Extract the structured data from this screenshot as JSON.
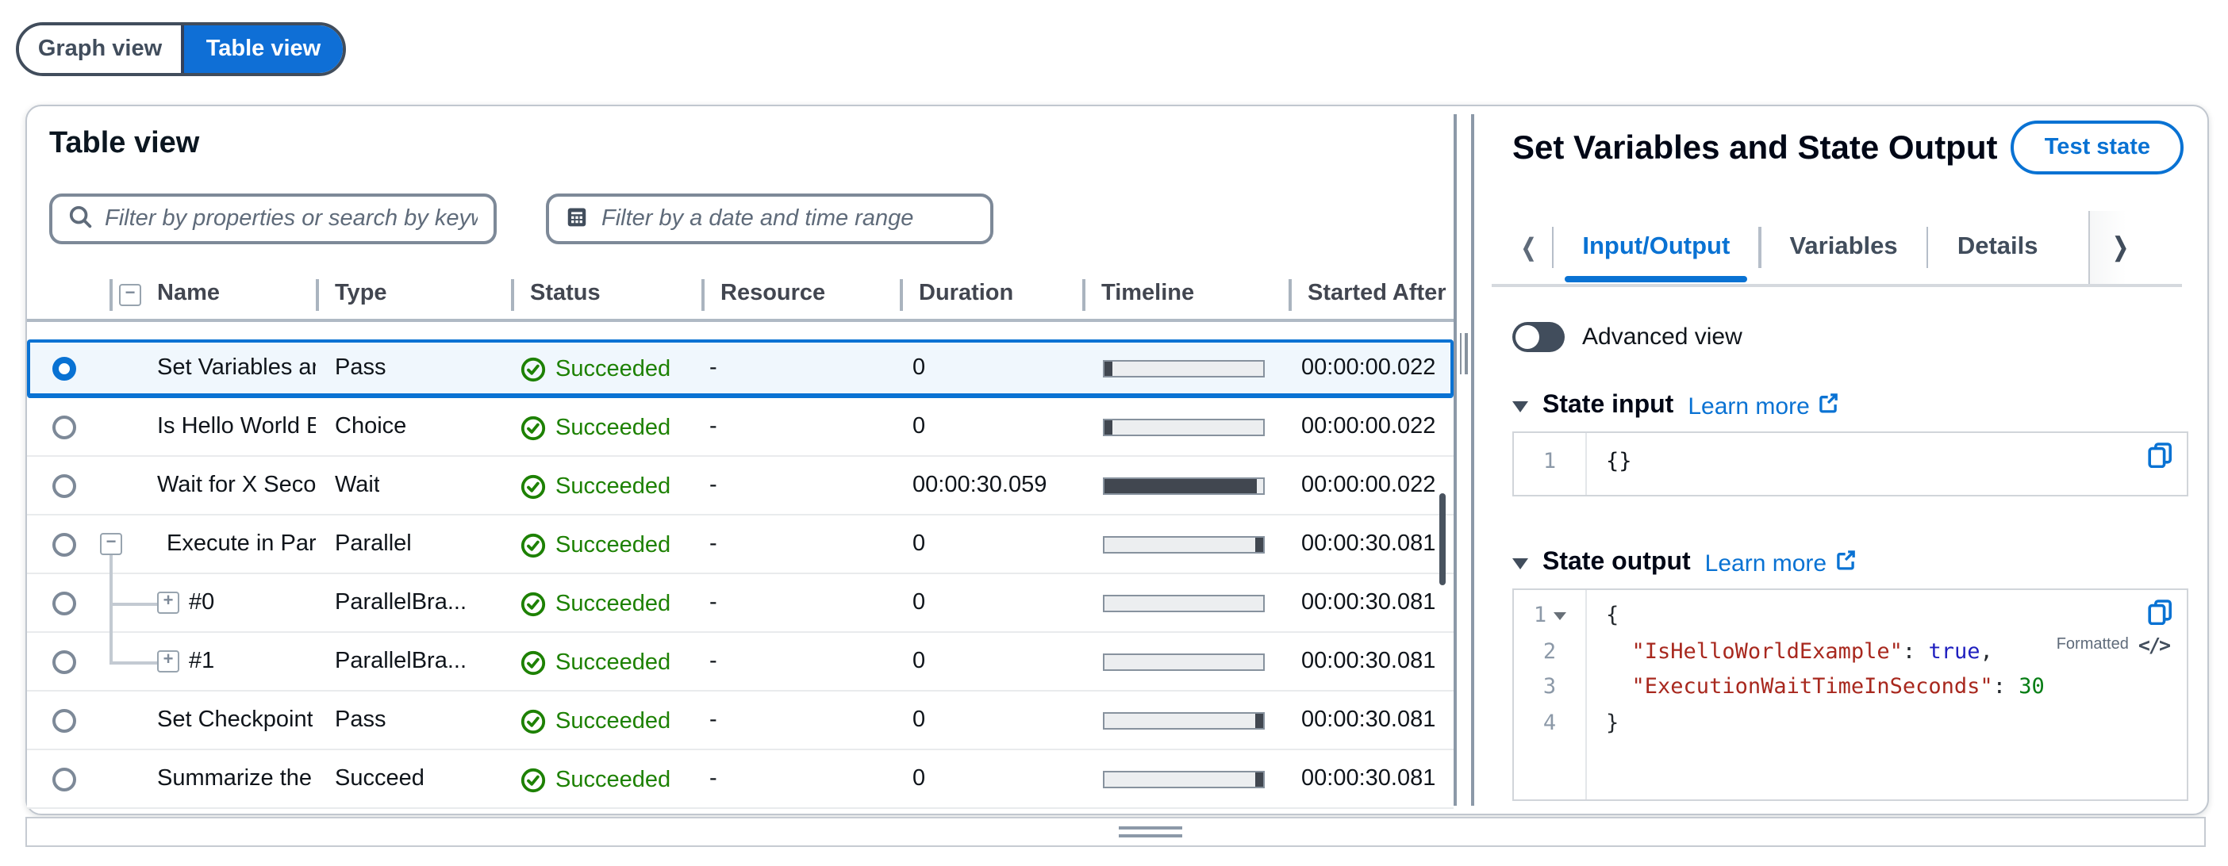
{
  "view_toggle": {
    "graph_label": "Graph view",
    "table_label": "Table view",
    "selected": "Table view"
  },
  "table_panel": {
    "title": "Table view",
    "search_placeholder": "Filter by properties or search by keyword",
    "date_placeholder": "Filter by a date and time range",
    "columns": [
      "Name",
      "Type",
      "Status",
      "Resource",
      "Duration",
      "Timeline",
      "Started After"
    ],
    "rows": [
      {
        "name": "Set Variables ar",
        "type": "Pass",
        "status": "Succeeded",
        "resource": "-",
        "duration": "0",
        "started_after": "00:00:00.022",
        "selected": true,
        "tree": "none",
        "timeline_mark": "start"
      },
      {
        "name": "Is Hello World E",
        "type": "Choice",
        "status": "Succeeded",
        "resource": "-",
        "duration": "0",
        "started_after": "00:00:00.022",
        "selected": false,
        "tree": "none",
        "timeline_mark": "start"
      },
      {
        "name": "Wait for X Secor",
        "type": "Wait",
        "status": "Succeeded",
        "resource": "-",
        "duration": "00:00:30.059",
        "started_after": "00:00:00.022",
        "selected": false,
        "tree": "none",
        "timeline_mark": "full"
      },
      {
        "name": "Execute in Para",
        "type": "Parallel",
        "status": "Succeeded",
        "resource": "-",
        "duration": "0",
        "started_after": "00:00:30.081",
        "selected": false,
        "tree": "collapse",
        "timeline_mark": "end"
      },
      {
        "name": "#0",
        "type": "ParallelBra...",
        "status": "Succeeded",
        "resource": "-",
        "duration": "0",
        "started_after": "00:00:30.081",
        "selected": false,
        "tree": "child",
        "timeline_mark": "none"
      },
      {
        "name": "#1",
        "type": "ParallelBra...",
        "status": "Succeeded",
        "resource": "-",
        "duration": "0",
        "started_after": "00:00:30.081",
        "selected": false,
        "tree": "child-last",
        "timeline_mark": "none"
      },
      {
        "name": "Set Checkpoint",
        "type": "Pass",
        "status": "Succeeded",
        "resource": "-",
        "duration": "0",
        "started_after": "00:00:30.081",
        "selected": false,
        "tree": "none",
        "timeline_mark": "end"
      },
      {
        "name": "Summarize the",
        "type": "Succeed",
        "status": "Succeeded",
        "resource": "-",
        "duration": "0",
        "started_after": "00:00:30.081",
        "selected": false,
        "tree": "none",
        "timeline_mark": "end"
      }
    ]
  },
  "detail_panel": {
    "title": "Set Variables and State Output",
    "test_state_label": "Test state",
    "tabs": [
      {
        "label": "Input/Output",
        "active": true
      },
      {
        "label": "Variables",
        "active": false
      },
      {
        "label": "Details",
        "active": false
      }
    ],
    "advanced_view_label": "Advanced view",
    "advanced_view_on": false,
    "state_input": {
      "heading": "State input",
      "learn_more_label": "Learn more",
      "lines": [
        {
          "num": "1",
          "code": "{}"
        }
      ]
    },
    "state_output": {
      "heading": "State output",
      "learn_more_label": "Learn more",
      "formatted_label": "Formatted",
      "lines": [
        {
          "num": "1",
          "fold": true,
          "tokens": [
            {
              "t": "{",
              "c": "plain"
            }
          ]
        },
        {
          "num": "2",
          "fold": false,
          "tokens": [
            {
              "t": "  ",
              "c": "plain"
            },
            {
              "t": "\"IsHelloWorldExample\"",
              "c": "key"
            },
            {
              "t": ": ",
              "c": "plain"
            },
            {
              "t": "true",
              "c": "bool"
            },
            {
              "t": ",",
              "c": "plain"
            }
          ]
        },
        {
          "num": "3",
          "fold": false,
          "tokens": [
            {
              "t": "  ",
              "c": "plain"
            },
            {
              "t": "\"ExecutionWaitTimeInSeconds\"",
              "c": "key"
            },
            {
              "t": ": ",
              "c": "plain"
            },
            {
              "t": "30",
              "c": "num"
            }
          ]
        },
        {
          "num": "4",
          "fold": false,
          "tokens": [
            {
              "t": "}",
              "c": "plain"
            }
          ]
        }
      ]
    }
  },
  "colors": {
    "accent_blue": "#0972d3",
    "selected_row_bg": "#f0f7fd",
    "success_green": "#1d8102",
    "code_key": "#a8281e",
    "code_bool": "#1f1fbf",
    "code_number": "#067d14"
  }
}
